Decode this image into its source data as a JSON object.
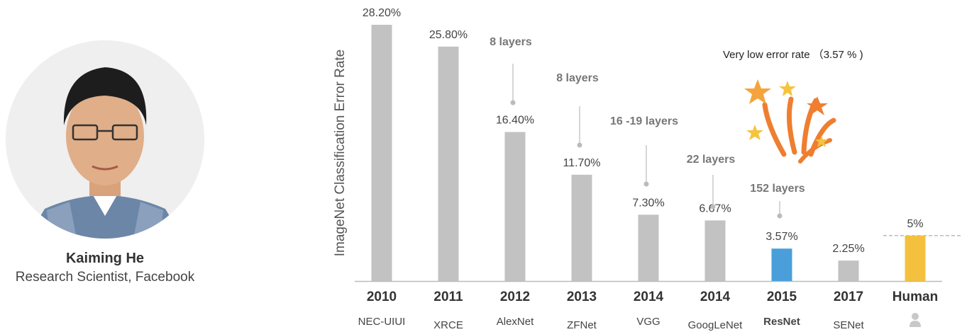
{
  "profile": {
    "name": "Kaiming He",
    "role": "Research Scientist, Facebook"
  },
  "chart_data": {
    "type": "bar",
    "title": "",
    "ylabel": "ImageNet Classification Error Rate",
    "xlabel": "",
    "ylim": [
      0,
      29
    ],
    "categories": [
      "2010",
      "2011",
      "2012",
      "2013",
      "2014",
      "2014",
      "2015",
      "2017",
      "Human"
    ],
    "models": [
      "NEC-UIUI",
      "XRCE",
      "AlexNet",
      "ZFNet",
      "VGG",
      "GoogLeNet",
      "ResNet",
      "SENet",
      ""
    ],
    "values": [
      28.2,
      25.8,
      16.4,
      11.7,
      7.3,
      6.67,
      3.57,
      2.25,
      5
    ],
    "value_labels": [
      "28.20%",
      "25.80%",
      "16.40%",
      "11.70%",
      "7.30%",
      "6.67%",
      "3.57%",
      "2.25%",
      "5%"
    ],
    "layer_annotations": [
      {
        "bar": 2,
        "text": "8 layers"
      },
      {
        "bar": 3,
        "text": "8 layers"
      },
      {
        "bar": 4,
        "text": "16 -19 layers"
      },
      {
        "bar": 5,
        "text": "22 layers"
      },
      {
        "bar": 6,
        "text": "152 layers"
      }
    ],
    "highlight_note": "Very low error rate （3.57 % )",
    "human_reference": 5,
    "colors": {
      "bar": "#c2c2c2",
      "highlight": "#4a9fdb",
      "human": "#f4c13e",
      "star": "#f5a43d",
      "firework": "#ef7e30"
    },
    "highlight_index": 6,
    "human_index": 8
  }
}
